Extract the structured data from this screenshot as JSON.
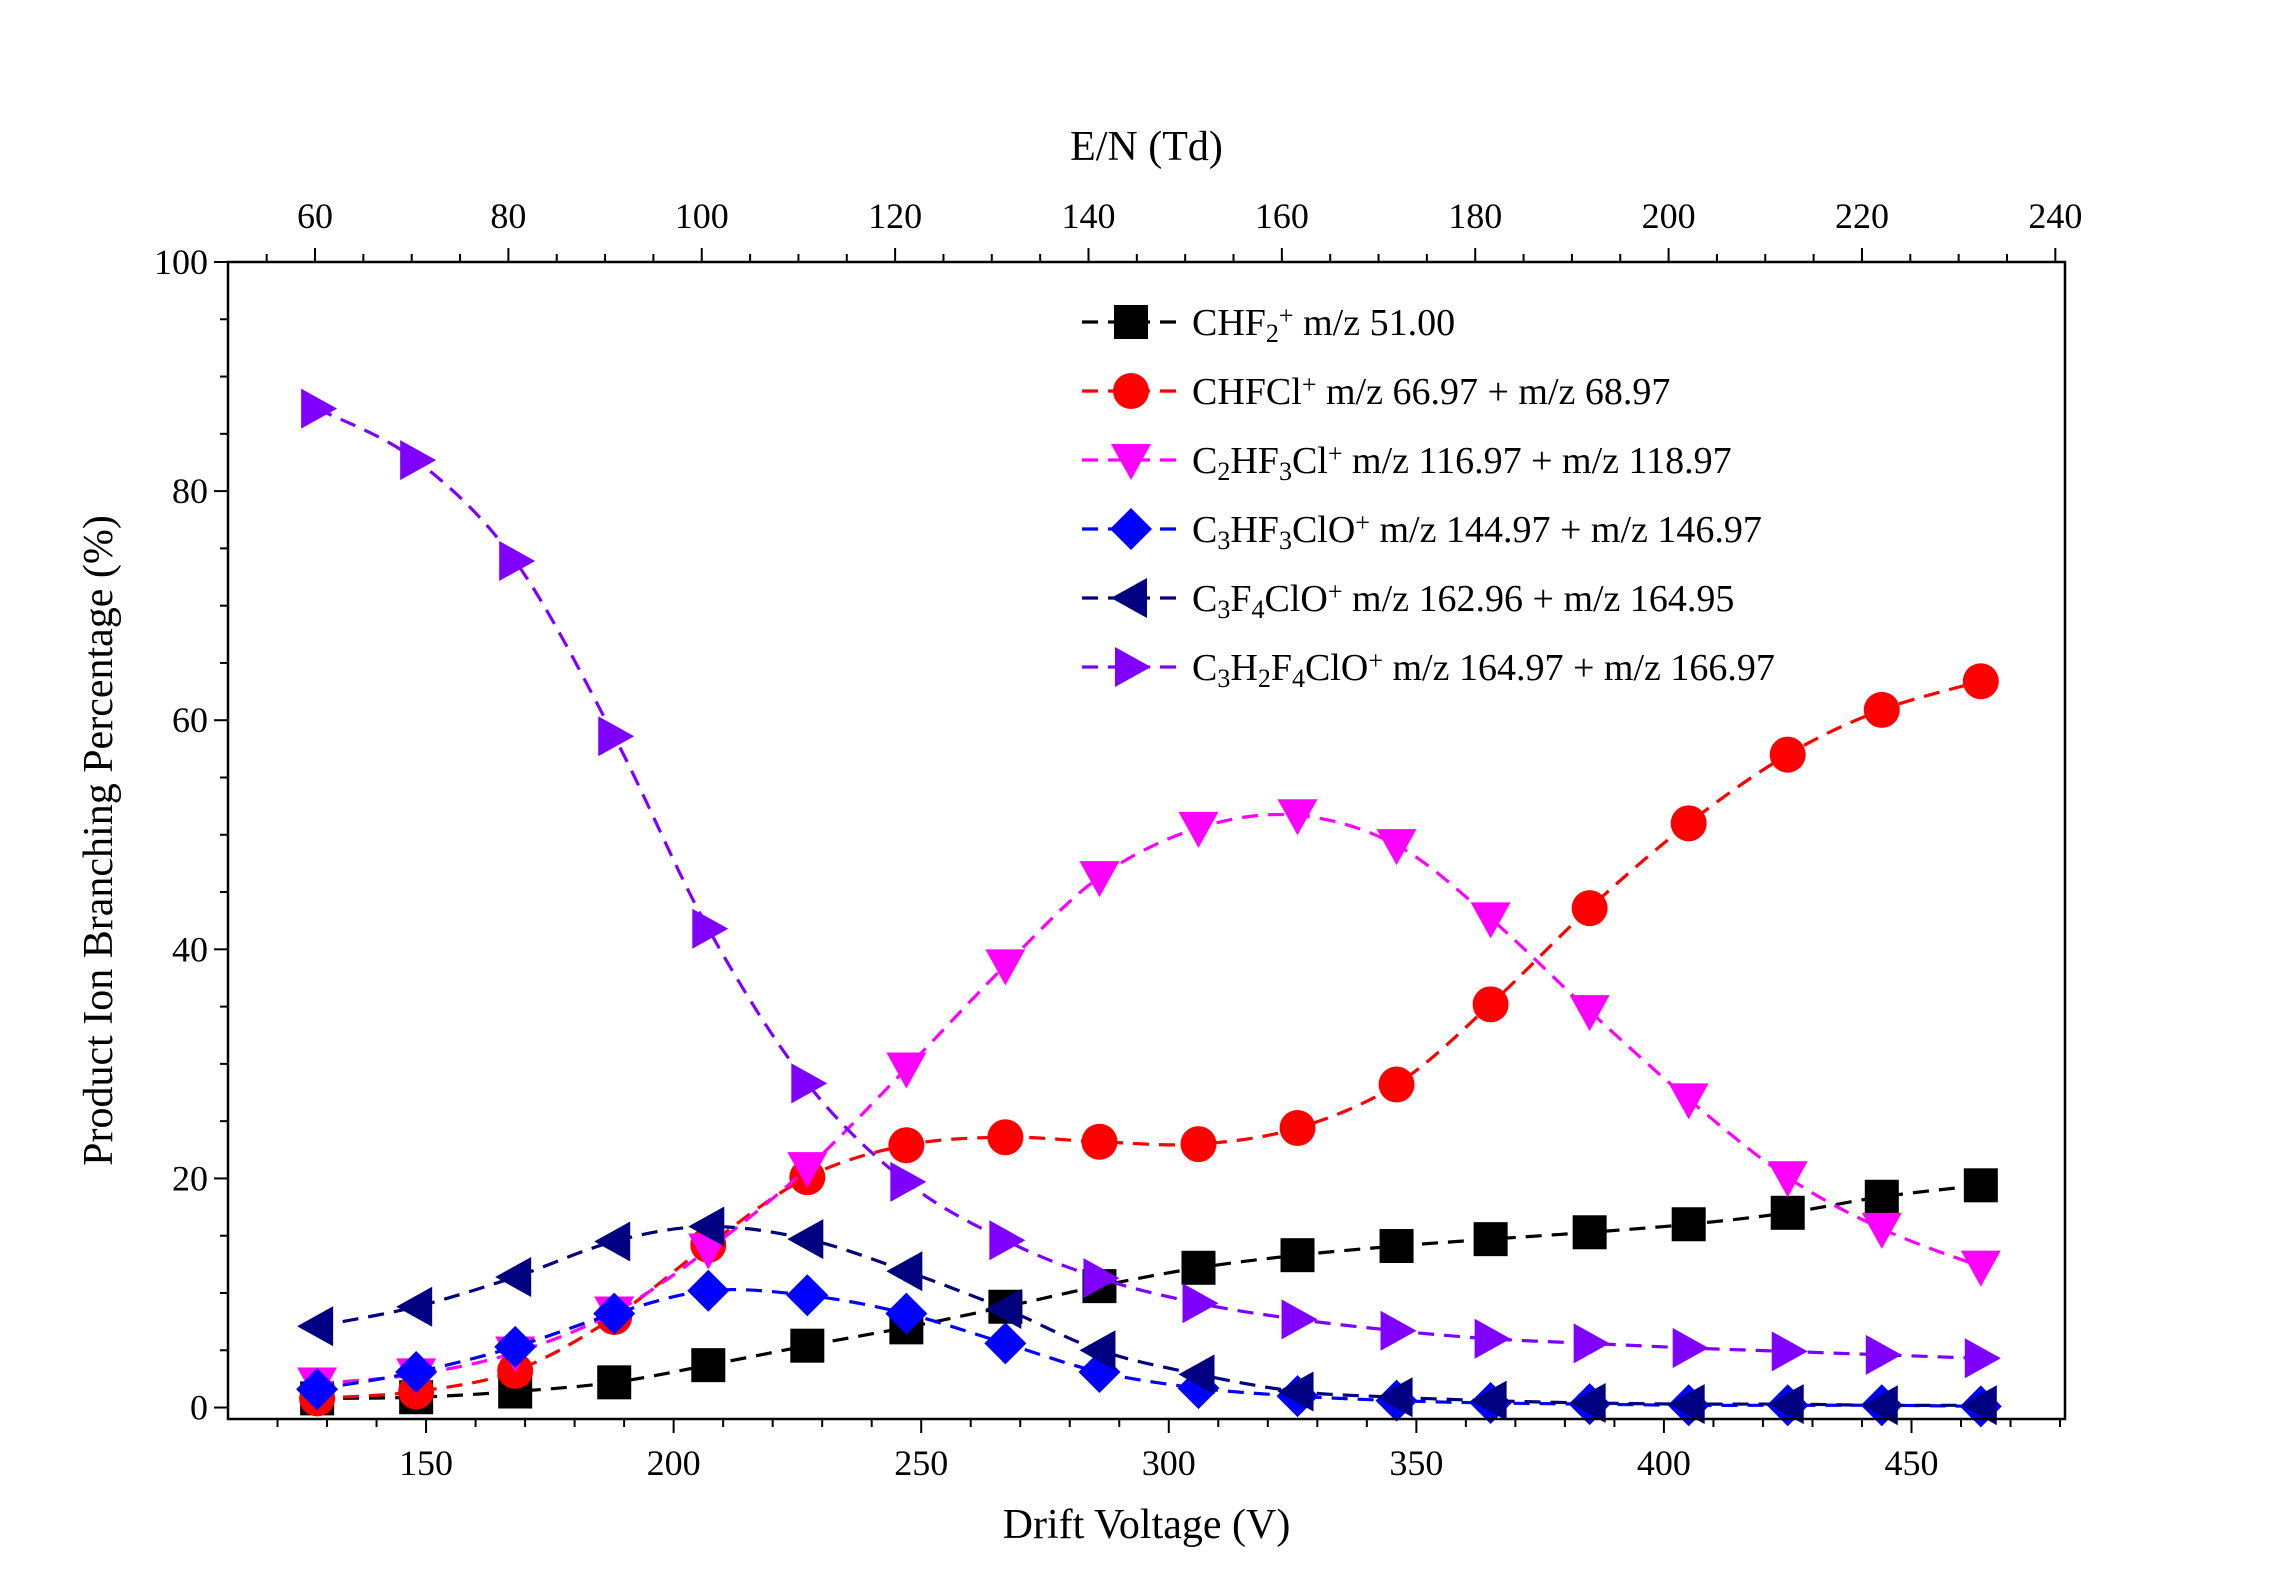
{
  "chart_data": {
    "type": "line",
    "xlabel": "Drift Voltage (V)",
    "ylabel": "Product Ion Branching Percentage (%)",
    "x2label": "E/N (Td)",
    "xlim": [
      110,
      481
    ],
    "ylim": [
      -1,
      100
    ],
    "x2lim": [
      51,
      241
    ],
    "xticks": [
      150,
      200,
      250,
      300,
      350,
      400,
      450
    ],
    "xtick_labels": [
      "150",
      "200",
      "250",
      "300",
      "350",
      "400",
      "450"
    ],
    "yticks": [
      0,
      20,
      40,
      60,
      80,
      100
    ],
    "ytick_labels": [
      "0",
      "20",
      "40",
      "60",
      "80",
      "100"
    ],
    "x2ticks": [
      60,
      80,
      100,
      120,
      140,
      160,
      180,
      200,
      220,
      240
    ],
    "x2tick_labels": [
      "60",
      "80",
      "100",
      "120",
      "140",
      "160",
      "180",
      "200",
      "220",
      "240"
    ],
    "legend_position": "top-right",
    "x": [
      128,
      148,
      168,
      188,
      207,
      227,
      247,
      267,
      286,
      306,
      326,
      346,
      365,
      385,
      405,
      425,
      444,
      464
    ],
    "series": [
      {
        "name": "CHF2+ m/z 51.00",
        "legend_parts": [
          [
            "CHF",
            ""
          ],
          [
            "2",
            "sub"
          ],
          [
            "+",
            "sup"
          ],
          [
            " m/z 51.00",
            ""
          ]
        ],
        "color": "#000000",
        "marker": "square",
        "values": [
          0.8,
          0.9,
          1.4,
          2.2,
          3.7,
          5.4,
          7.0,
          8.8,
          10.6,
          12.2,
          13.3,
          14.1,
          14.7,
          15.3,
          16.0,
          17.0,
          18.4,
          19.4
        ]
      },
      {
        "name": "CHFCl+ m/z 66.97 + m/z 68.97",
        "legend_parts": [
          [
            "CHFCl",
            ""
          ],
          [
            "+",
            "sup"
          ],
          [
            " m/z 66.97 + m/z 68.97",
            ""
          ]
        ],
        "color": "#ff0000",
        "marker": "circle",
        "values": [
          0.8,
          1.4,
          3.2,
          7.9,
          14.2,
          20.1,
          22.9,
          23.6,
          23.2,
          23.0,
          24.4,
          28.2,
          35.2,
          43.6,
          51.0,
          57.0,
          60.9,
          63.4
        ]
      },
      {
        "name": "C2HF3Cl+ m/z 116.97 + m/z 118.97",
        "legend_parts": [
          [
            "C",
            ""
          ],
          [
            "2",
            "sub"
          ],
          [
            "HF",
            ""
          ],
          [
            "3",
            "sub"
          ],
          [
            "Cl",
            ""
          ],
          [
            "+",
            "sup"
          ],
          [
            " m/z 116.97 + m/z 118.97",
            ""
          ]
        ],
        "color": "#ff00ff",
        "marker": "triangle-down",
        "values": [
          2.1,
          2.9,
          4.8,
          8.3,
          13.8,
          20.9,
          29.6,
          38.6,
          46.3,
          50.6,
          51.7,
          49.1,
          42.7,
          34.6,
          26.9,
          20.1,
          15.6,
          12.3
        ]
      },
      {
        "name": "C3HF3ClO+ m/z 144.97 + m/z 146.97",
        "legend_parts": [
          [
            "C",
            ""
          ],
          [
            "3",
            "sub"
          ],
          [
            "HF",
            ""
          ],
          [
            "3",
            "sub"
          ],
          [
            "ClO",
            ""
          ],
          [
            "+",
            "sup"
          ],
          [
            " m/z 144.97 + m/z 146.97",
            ""
          ]
        ],
        "color": "#0000ff",
        "marker": "diamond",
        "values": [
          1.6,
          3.1,
          5.3,
          8.2,
          10.2,
          9.8,
          8.2,
          5.6,
          3.1,
          1.7,
          1.0,
          0.6,
          0.4,
          0.3,
          0.2,
          0.2,
          0.2,
          0.1
        ]
      },
      {
        "name": "C3F4ClO+ m/z 162.96 + m/z 164.95",
        "legend_parts": [
          [
            "C",
            ""
          ],
          [
            "3",
            "sub"
          ],
          [
            "F",
            ""
          ],
          [
            "4",
            "sub"
          ],
          [
            "ClO",
            ""
          ],
          [
            "+",
            "sup"
          ],
          [
            " m/z 162.96 + m/z 164.95",
            ""
          ]
        ],
        "color": "#000080",
        "marker": "triangle-left",
        "values": [
          7.1,
          8.8,
          11.4,
          14.5,
          15.8,
          14.7,
          11.9,
          8.6,
          5.0,
          2.9,
          1.4,
          0.9,
          0.6,
          0.4,
          0.3,
          0.3,
          0.2,
          0.2
        ]
      },
      {
        "name": "C3H2F4ClO+ m/z 164.97 + m/z 166.97",
        "legend_parts": [
          [
            "C",
            ""
          ],
          [
            "3",
            "sub"
          ],
          [
            "H",
            ""
          ],
          [
            "2",
            "sub"
          ],
          [
            "F",
            ""
          ],
          [
            "4",
            "sub"
          ],
          [
            "ClO",
            ""
          ],
          [
            "+",
            "sup"
          ],
          [
            " m/z 164.97 + m/z 166.97",
            ""
          ]
        ],
        "color": "#8000ff",
        "marker": "triangle-right",
        "values": [
          87.2,
          82.7,
          73.9,
          58.6,
          41.8,
          28.3,
          19.7,
          14.6,
          11.3,
          9.1,
          7.7,
          6.7,
          6.0,
          5.6,
          5.2,
          4.9,
          4.6,
          4.3
        ]
      }
    ]
  }
}
